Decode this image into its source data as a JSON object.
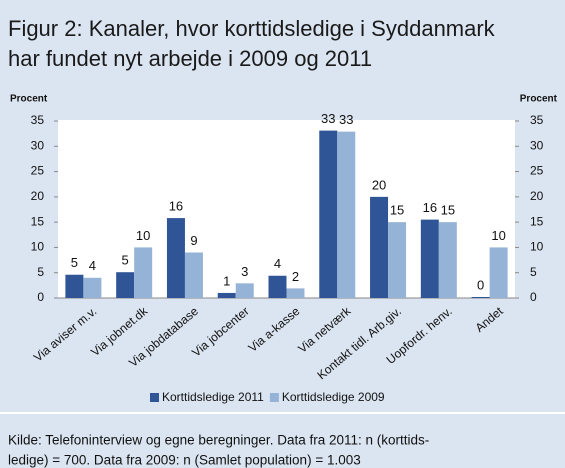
{
  "chart_data": {
    "type": "bar",
    "title": [
      "Figur 2: Kanaler, hvor korttidsledige i Syddanmark",
      "har fundet nyt arbejde i 2009 og 2011"
    ],
    "ylabel": "Procent",
    "y2label": "Procent",
    "categories": [
      "Via aviser m.v.",
      "Via jobnet.dk",
      "Via jobdatabase",
      "Via jobcenter",
      "Via a-kasse",
      "Via netværk",
      "Kontakt tidl. Arb.giv.",
      "Uopfordr. henv.",
      "Andet"
    ],
    "series": [
      {
        "name": "Korttidsledige 2011",
        "color": "#2f5597",
        "values": [
          4.6,
          5.1,
          15.8,
          1.0,
          4.4,
          33.1,
          20.0,
          15.5,
          0.2
        ],
        "value_labels": [
          "5",
          "5",
          "16",
          "1",
          "4",
          "33",
          "20",
          "16",
          "0"
        ]
      },
      {
        "name": "Korttidsledige 2009",
        "color": "#95b3d7",
        "values": [
          4.0,
          10.0,
          9.0,
          2.9,
          1.9,
          32.9,
          15.0,
          15.0,
          10.0
        ],
        "value_labels": [
          "4",
          "10",
          "9",
          "3",
          "2",
          "33",
          "15",
          "15",
          "10"
        ]
      }
    ],
    "ylim": [
      0,
      35
    ],
    "yticks": [
      0,
      5,
      10,
      15,
      20,
      25,
      30,
      35
    ],
    "y2lim": [
      0,
      35
    ],
    "y2ticks": [
      0,
      5,
      10,
      15,
      20,
      25,
      30,
      35
    ],
    "legend": "bottom",
    "source": [
      "Kilde: Telefoninterview og egne beregninger. Data fra 2011: n (korttids-",
      "ledige) = 700. Data fra 2009: n (Samlet population) = 1.003"
    ]
  }
}
